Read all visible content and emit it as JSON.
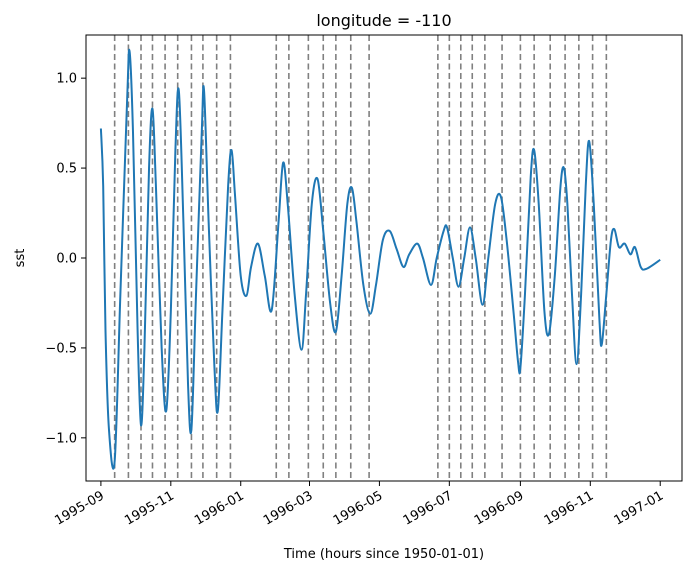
{
  "chart_data": {
    "type": "line",
    "title": "longitude = -110",
    "xlabel": "Time (hours since 1950-01-01)",
    "ylabel": "sst",
    "xlim": [
      "1995-08-19",
      "1997-01-20"
    ],
    "ylim": [
      -1.24,
      1.24
    ],
    "grid": false,
    "legend": "none",
    "x_ticks": [
      "1995-09-01",
      "1995-11-01",
      "1996-01-01",
      "1996-03-01",
      "1996-05-01",
      "1996-07-01",
      "1996-09-01",
      "1996-11-01",
      "1997-01-01"
    ],
    "x_tick_labels": [
      "1995-09",
      "1995-11",
      "1996-01",
      "1996-03",
      "1996-05",
      "1996-07",
      "1996-09",
      "1996-11",
      "1997-01"
    ],
    "y_ticks": [
      -1.0,
      -0.5,
      0.0,
      0.5,
      1.0
    ],
    "y_tick_labels": [
      "−1.0",
      "−0.5",
      "0.0",
      "0.5",
      "1.0"
    ],
    "series": [
      {
        "color": "#1f77b4",
        "points": [
          [
            "1995-09-01",
            0.72
          ],
          [
            "1995-09-03",
            0.4
          ],
          [
            "1995-09-05",
            -0.4
          ],
          [
            "1995-09-08",
            -0.95
          ],
          [
            "1995-09-13",
            -1.13
          ],
          [
            "1995-09-18",
            -0.2
          ],
          [
            "1995-09-24",
            0.9
          ],
          [
            "1995-09-26",
            1.15
          ],
          [
            "1995-09-29",
            0.7
          ],
          [
            "1995-10-03",
            -0.4
          ],
          [
            "1995-10-06",
            -0.93
          ],
          [
            "1995-10-09",
            -0.5
          ],
          [
            "1995-10-13",
            0.5
          ],
          [
            "1995-10-16",
            0.83
          ],
          [
            "1995-10-19",
            0.4
          ],
          [
            "1995-10-24",
            -0.5
          ],
          [
            "1995-10-28",
            -0.85
          ],
          [
            "1995-11-01",
            -0.3
          ],
          [
            "1995-11-05",
            0.6
          ],
          [
            "1995-11-08",
            0.93
          ],
          [
            "1995-11-12",
            0.2
          ],
          [
            "1995-11-16",
            -0.7
          ],
          [
            "1995-11-19",
            -0.95
          ],
          [
            "1995-11-23",
            -0.2
          ],
          [
            "1995-11-28",
            0.7
          ],
          [
            "1995-11-30",
            0.93
          ],
          [
            "1995-12-04",
            0.2
          ],
          [
            "1995-12-09",
            -0.6
          ],
          [
            "1995-12-12",
            -0.85
          ],
          [
            "1995-12-16",
            -0.3
          ],
          [
            "1995-12-21",
            0.4
          ],
          [
            "1995-12-24",
            0.6
          ],
          [
            "1995-12-27",
            0.35
          ],
          [
            "1996-01-01",
            -0.1
          ],
          [
            "1996-01-06",
            -0.21
          ],
          [
            "1996-01-10",
            -0.05
          ],
          [
            "1996-01-16",
            0.08
          ],
          [
            "1996-01-22",
            -0.1
          ],
          [
            "1996-01-28",
            -0.29
          ],
          [
            "1996-02-03",
            0.2
          ],
          [
            "1996-02-07",
            0.53
          ],
          [
            "1996-02-11",
            0.3
          ],
          [
            "1996-02-17",
            -0.2
          ],
          [
            "1996-02-23",
            -0.51
          ],
          [
            "1996-02-27",
            -0.2
          ],
          [
            "1996-03-03",
            0.3
          ],
          [
            "1996-03-08",
            0.44
          ],
          [
            "1996-03-13",
            0.15
          ],
          [
            "1996-03-19",
            -0.25
          ],
          [
            "1996-03-24",
            -0.41
          ],
          [
            "1996-03-29",
            -0.1
          ],
          [
            "1996-04-03",
            0.3
          ],
          [
            "1996-04-07",
            0.39
          ],
          [
            "1996-04-11",
            0.2
          ],
          [
            "1996-04-17",
            -0.15
          ],
          [
            "1996-04-23",
            -0.31
          ],
          [
            "1996-04-28",
            -0.15
          ],
          [
            "1996-05-04",
            0.1
          ],
          [
            "1996-05-10",
            0.15
          ],
          [
            "1996-05-16",
            0.05
          ],
          [
            "1996-05-22",
            -0.05
          ],
          [
            "1996-05-27",
            0.02
          ],
          [
            "1996-06-03",
            0.08
          ],
          [
            "1996-06-08",
            0.0
          ],
          [
            "1996-06-15",
            -0.15
          ],
          [
            "1996-06-20",
            0.0
          ],
          [
            "1996-06-26",
            0.15
          ],
          [
            "1996-06-29",
            0.17
          ],
          [
            "1996-07-04",
            0.0
          ],
          [
            "1996-07-09",
            -0.16
          ],
          [
            "1996-07-14",
            0.0
          ],
          [
            "1996-07-19",
            0.17
          ],
          [
            "1996-07-24",
            0.0
          ],
          [
            "1996-07-30",
            -0.26
          ],
          [
            "1996-08-04",
            0.0
          ],
          [
            "1996-08-10",
            0.3
          ],
          [
            "1996-08-15",
            0.34
          ],
          [
            "1996-08-20",
            0.1
          ],
          [
            "1996-08-26",
            -0.3
          ],
          [
            "1996-08-30",
            -0.58
          ],
          [
            "1996-09-01",
            -0.61
          ],
          [
            "1996-09-05",
            -0.2
          ],
          [
            "1996-09-10",
            0.45
          ],
          [
            "1996-09-13",
            0.6
          ],
          [
            "1996-09-17",
            0.3
          ],
          [
            "1996-09-22",
            -0.3
          ],
          [
            "1996-09-26",
            -0.42
          ],
          [
            "1996-10-01",
            -0.1
          ],
          [
            "1996-10-06",
            0.4
          ],
          [
            "1996-10-09",
            0.5
          ],
          [
            "1996-10-12",
            0.3
          ],
          [
            "1996-10-16",
            -0.2
          ],
          [
            "1996-10-20",
            -0.59
          ],
          [
            "1996-10-24",
            -0.2
          ],
          [
            "1996-10-28",
            0.4
          ],
          [
            "1996-10-31",
            0.65
          ],
          [
            "1996-11-04",
            0.3
          ],
          [
            "1996-11-09",
            -0.35
          ],
          [
            "1996-11-11",
            -0.48
          ],
          [
            "1996-11-15",
            -0.2
          ],
          [
            "1996-11-19",
            0.1
          ],
          [
            "1996-11-22",
            0.16
          ],
          [
            "1996-11-26",
            0.06
          ],
          [
            "1996-12-01",
            0.08
          ],
          [
            "1996-12-06",
            0.02
          ],
          [
            "1996-12-10",
            0.06
          ],
          [
            "1996-12-15",
            -0.05
          ],
          [
            "1996-12-20",
            -0.06
          ],
          [
            "1997-01-01",
            -0.01
          ]
        ]
      }
    ],
    "vertical_lines": {
      "color": "#808080",
      "style": "dashed",
      "x": [
        "1995-09-13",
        "1995-09-25",
        "1995-10-06",
        "1995-10-16",
        "1995-10-27",
        "1995-11-07",
        "1995-11-19",
        "1995-11-29",
        "1995-12-11",
        "1995-12-23",
        "1996-02-01",
        "1996-02-12",
        "1996-02-29",
        "1996-03-13",
        "1996-03-24",
        "1996-04-06",
        "1996-04-22",
        "1996-06-21",
        "1996-07-01",
        "1996-07-11",
        "1996-07-21",
        "1996-08-01",
        "1996-08-16",
        "1996-09-01",
        "1996-09-13",
        "1996-09-27",
        "1996-10-10",
        "1996-10-22",
        "1996-11-03",
        "1996-11-15"
      ]
    }
  }
}
